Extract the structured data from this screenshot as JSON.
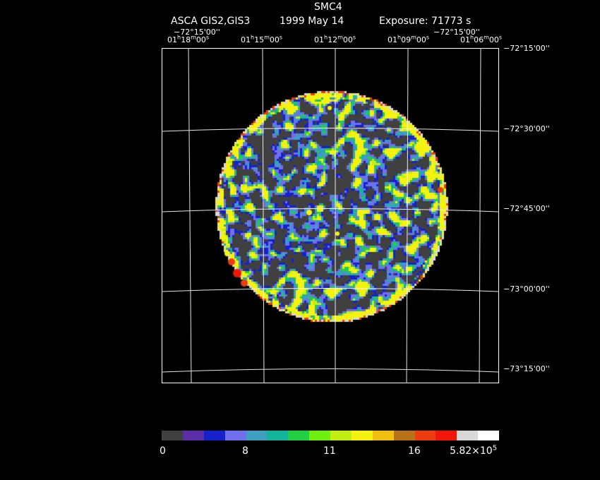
{
  "header": {
    "object": "SMC4",
    "instrument": "ASCA GIS2,GIS3",
    "date": "1999 May 14",
    "exposure": "Exposure: 71773 s"
  },
  "axes": {
    "corner_dec_left": "−72°15'00''",
    "corner_dec_right": "−72°15'00''",
    "ra_ticks": [
      {
        "h": "01",
        "m": "18",
        "s": "00"
      },
      {
        "h": "01",
        "m": "15",
        "s": "00"
      },
      {
        "h": "01",
        "m": "12",
        "s": "00"
      },
      {
        "h": "01",
        "m": "09",
        "s": "00"
      },
      {
        "h": "01",
        "m": "06",
        "s": "00"
      }
    ],
    "dec_ticks": [
      "−72°15'00''",
      "−72°30'00''",
      "−72°45'00''",
      "−73°00'00''",
      "−73°15'00''"
    ]
  },
  "colorbar": {
    "colors": [
      "#404040",
      "#5b2ea8",
      "#1522cc",
      "#6f6ff0",
      "#3f9fbf",
      "#12b59a",
      "#22cf42",
      "#6fee10",
      "#c2ee12",
      "#f5f210",
      "#f0bf10",
      "#b87218",
      "#ee3c10",
      "#f21608",
      "#d8d8d8",
      "#ffffff"
    ],
    "labels": [
      "0",
      "8",
      "11",
      "16",
      "5.82×10"
    ],
    "exponent": "5"
  }
}
